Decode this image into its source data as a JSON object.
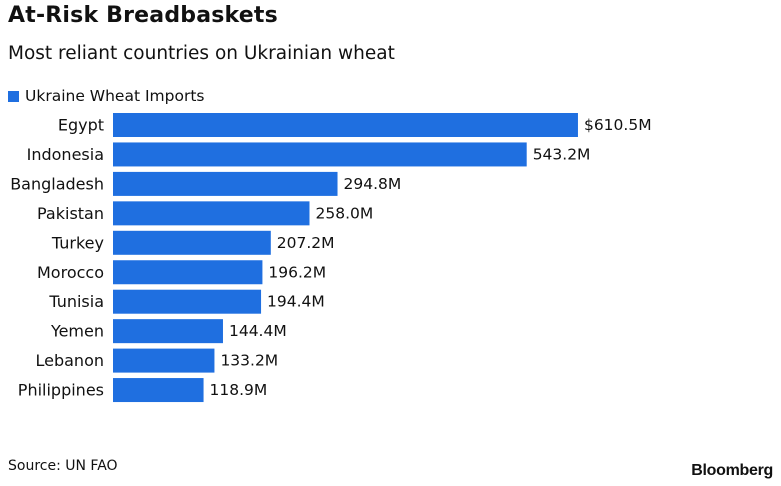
{
  "header": {
    "title": "At-Risk Breadbaskets",
    "subtitle": "Most reliant countries on Ukrainian wheat"
  },
  "legend": {
    "label": "Ukraine Wheat Imports"
  },
  "footer": {
    "source": "Source: UN FAO",
    "brand": "Bloomberg"
  },
  "colors": {
    "bar": "#1f6fe0",
    "text": "#111111"
  },
  "chart_data": {
    "type": "bar",
    "orientation": "horizontal",
    "categories": [
      "Egypt",
      "Indonesia",
      "Bangladesh",
      "Pakistan",
      "Turkey",
      "Morocco",
      "Tunisia",
      "Yemen",
      "Lebanon",
      "Philippines"
    ],
    "series": [
      {
        "name": "Ukraine Wheat Imports",
        "values": [
          610.5,
          543.2,
          294.8,
          258.0,
          207.2,
          196.2,
          194.4,
          144.4,
          133.2,
          118.9
        ]
      }
    ],
    "value_labels": [
      "$610.5M",
      "543.2M",
      "294.8M",
      "258.0M",
      "207.2M",
      "196.2M",
      "194.4M",
      "144.4M",
      "133.2M",
      "118.9M"
    ],
    "unit": "USD millions",
    "grid": false,
    "legend_position": "top-left"
  }
}
